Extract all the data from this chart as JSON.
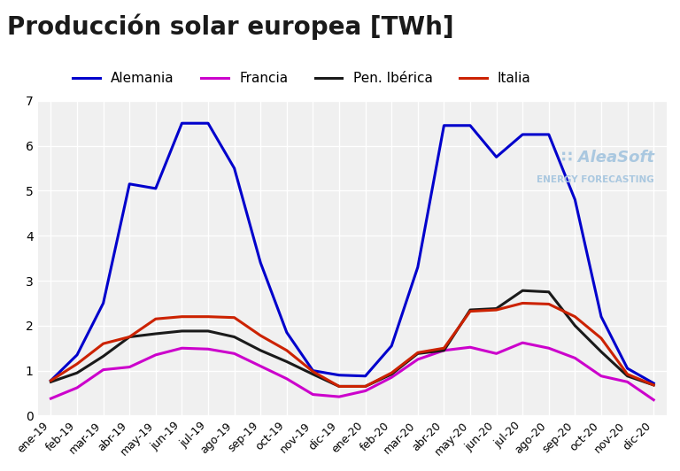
{
  "title": "Producción solar europea [TWh]",
  "title_fontsize": 20,
  "title_fontweight": "bold",
  "title_color": "#1a1a1a",
  "background_color": "#ffffff",
  "plot_bg_color": "#f0f0f0",
  "grid_color": "#ffffff",
  "ylim": [
    0,
    7
  ],
  "yticks": [
    0,
    1,
    2,
    3,
    4,
    5,
    6,
    7
  ],
  "x_labels": [
    "ene-19",
    "feb-19",
    "mar-19",
    "abr-19",
    "may-19",
    "jun-19",
    "jul-19",
    "ago-19",
    "sep-19",
    "oct-19",
    "nov-19",
    "dic-19",
    "ene-20",
    "feb-20",
    "mar-20",
    "abr-20",
    "may-20",
    "jun-20",
    "jul-20",
    "ago-20",
    "sep-20",
    "oct-20",
    "nov-20",
    "dic-20"
  ],
  "series": {
    "Alemania": {
      "color": "#0000cc",
      "values": [
        0.78,
        1.35,
        2.5,
        5.15,
        5.05,
        6.5,
        6.5,
        5.5,
        3.4,
        1.85,
        1.0,
        0.9,
        0.88,
        1.55,
        3.3,
        6.45,
        6.45,
        5.75,
        6.25,
        6.25,
        4.8,
        2.2,
        1.05,
        0.72
      ]
    },
    "Francia": {
      "color": "#cc00cc",
      "values": [
        0.38,
        0.62,
        1.02,
        1.08,
        1.35,
        1.5,
        1.48,
        1.38,
        1.1,
        0.82,
        0.47,
        0.42,
        0.55,
        0.85,
        1.25,
        1.45,
        1.52,
        1.38,
        1.62,
        1.5,
        1.28,
        0.88,
        0.75,
        0.35
      ]
    },
    "Pen. Ibérica": {
      "color": "#1a1a1a",
      "values": [
        0.75,
        0.95,
        1.32,
        1.75,
        1.82,
        1.88,
        1.88,
        1.75,
        1.45,
        1.2,
        0.92,
        0.65,
        0.65,
        0.92,
        1.38,
        1.45,
        2.35,
        2.38,
        2.78,
        2.75,
        2.0,
        1.42,
        0.88,
        0.68
      ]
    },
    "Italia": {
      "color": "#cc2200",
      "values": [
        0.78,
        1.15,
        1.6,
        1.75,
        2.15,
        2.2,
        2.2,
        2.18,
        1.78,
        1.45,
        0.98,
        0.65,
        0.65,
        0.95,
        1.4,
        1.5,
        2.32,
        2.35,
        2.5,
        2.48,
        2.2,
        1.72,
        0.92,
        0.68
      ]
    }
  },
  "legend_ncol": 4,
  "legend_fontsize": 11,
  "watermark_line1": "AleaSoft",
  "watermark_line2": "ENERGY FORECASTING",
  "watermark_color": "#aac8e0",
  "line_width": 2.2
}
